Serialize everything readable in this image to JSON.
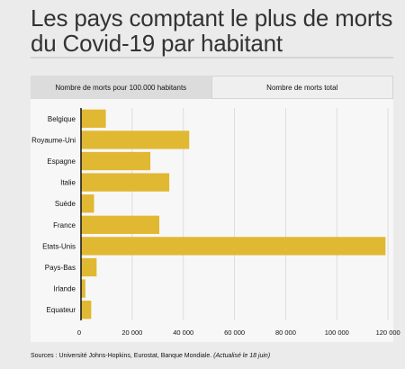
{
  "title": "Les pays comptant le plus de morts du Covid-19 par habitant",
  "tabs": [
    {
      "label": "Nombre de morts pour 100.000 habitants",
      "active": true
    },
    {
      "label": "Nombre de morts total",
      "active": false
    }
  ],
  "source": {
    "text": "Sources : Université Johns-Hopkins, Eurostat, Banque Mondiale.",
    "note": "(Actualisé le 18 juin)"
  },
  "colors": {
    "bar": "#e0b832",
    "grid": "#dddddd",
    "axis": "#111111"
  },
  "chart_data": {
    "type": "bar",
    "orientation": "horizontal",
    "categories": [
      "Belgique",
      "Royaume-Uni",
      "Espagne",
      "Italie",
      "Suède",
      "France",
      "Etats-Unis",
      "Pays-Bas",
      "Irlande",
      "Equateur"
    ],
    "values": [
      9700,
      42300,
      27100,
      34500,
      5100,
      30600,
      119000,
      6100,
      1700,
      4000
    ],
    "xlim": [
      0,
      121000
    ],
    "xticks": [
      0,
      20000,
      40000,
      60000,
      80000,
      100000,
      120000
    ],
    "xtick_labels": [
      "0",
      "20 000",
      "40 000",
      "60 000",
      "80 000",
      "100 000",
      "120 000"
    ],
    "grid": true,
    "legend": "none"
  }
}
